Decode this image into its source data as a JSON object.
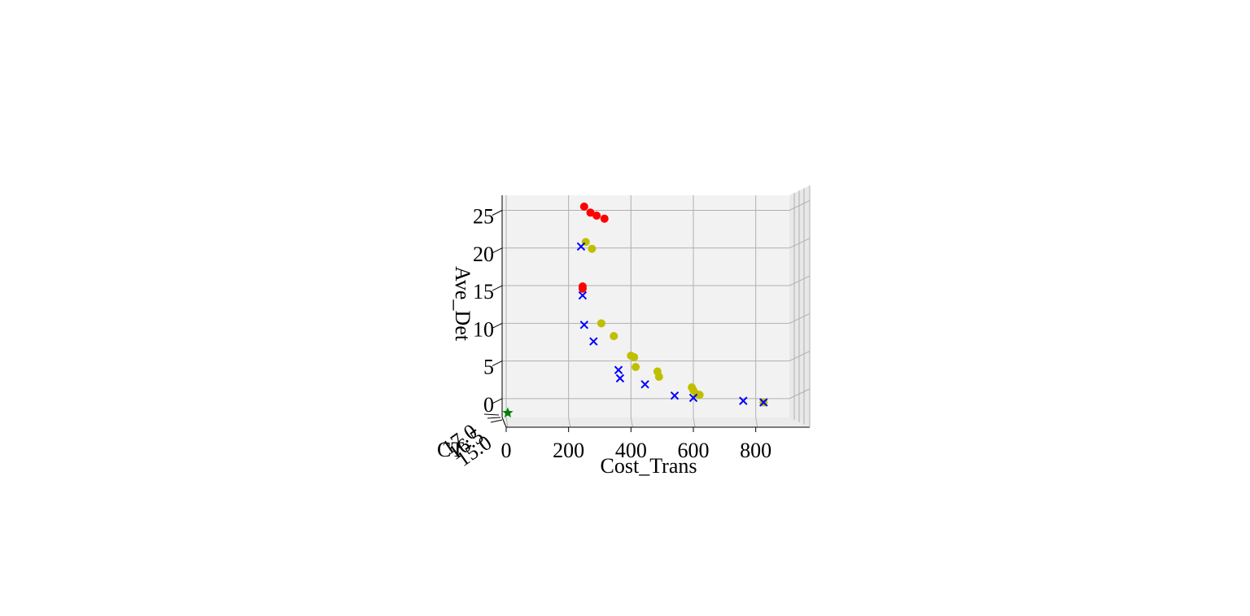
{
  "chart_data": {
    "type": "scatter3d",
    "title": "",
    "xlabel": "Cost_Trans",
    "ylabel": "Ave_Det",
    "zlabel": "CT",
    "xticks": [
      "0",
      "200",
      "400",
      "600",
      "800"
    ],
    "yticks": [
      "0",
      "5",
      "10",
      "15",
      "20",
      "25"
    ],
    "zticks": [
      "15.0",
      "16.5",
      "17.0"
    ],
    "xlim": [
      0,
      900
    ],
    "ylim": [
      -2.5,
      27
    ],
    "grid": true,
    "colors": {
      "red": "#ff0000",
      "yellow": "#bfbf00",
      "blue": "#0000ff",
      "green": "#008000",
      "pane": "#f2f2f2",
      "grid": "#b0b0b0"
    },
    "series": [
      {
        "marker": "circle",
        "color": "red",
        "points": [
          [
            250,
            25.5
          ],
          [
            270,
            24.7
          ],
          [
            290,
            24.3
          ],
          [
            315,
            23.9
          ],
          [
            245,
            14.9
          ],
          [
            245,
            14.6
          ]
        ]
      },
      {
        "marker": "circle",
        "color": "yellow",
        "points": [
          [
            255,
            20.8
          ],
          [
            275,
            19.9
          ],
          [
            305,
            10.0
          ],
          [
            345,
            8.3
          ],
          [
            400,
            5.7
          ],
          [
            410,
            5.5
          ],
          [
            415,
            4.2
          ],
          [
            485,
            3.6
          ],
          [
            490,
            2.9
          ],
          [
            595,
            1.5
          ],
          [
            600,
            1.1
          ],
          [
            610,
            0.6
          ],
          [
            620,
            0.5
          ],
          [
            825,
            -0.5
          ]
        ]
      },
      {
        "marker": "x",
        "color": "blue",
        "points": [
          [
            240,
            20.2
          ],
          [
            245,
            13.7
          ],
          [
            250,
            9.8
          ],
          [
            280,
            7.6
          ],
          [
            360,
            3.8
          ],
          [
            365,
            2.7
          ],
          [
            445,
            1.9
          ],
          [
            540,
            0.4
          ],
          [
            600,
            0.1
          ],
          [
            760,
            -0.3
          ],
          [
            825,
            -0.5
          ]
        ]
      },
      {
        "marker": "star",
        "color": "green",
        "points": [
          [
            5,
            -1.9
          ]
        ]
      }
    ]
  }
}
